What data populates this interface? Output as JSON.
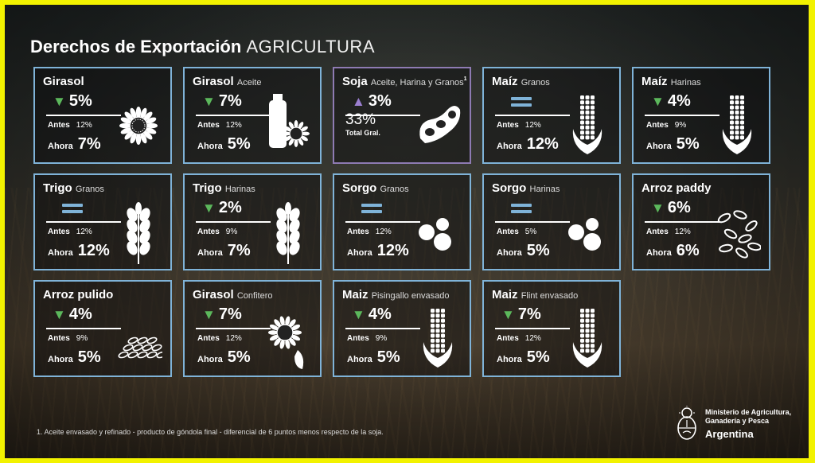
{
  "title": {
    "bold": "Derechos de Exportación",
    "light": "AGRICULTURA"
  },
  "labels": {
    "before": "Antes",
    "now": "Ahora",
    "total": "Total Gral."
  },
  "colors": {
    "card_border": "#7fb3d8",
    "soja_border": "#8e7bb3",
    "down_arrow": "#5cb85c",
    "up_arrow": "#9b7fd0",
    "frame": "#f2f200"
  },
  "cards": [
    {
      "name": "Girasol",
      "sub": "",
      "change": "5%",
      "direction": "down",
      "before": "12%",
      "now": "7%",
      "icon": "sunflower-icon"
    },
    {
      "name": "Girasol",
      "sub": "Aceite",
      "change": "7%",
      "direction": "down",
      "before": "12%",
      "now": "5%",
      "icon": "oil-bottle-sunflower-icon"
    },
    {
      "name": "Soja",
      "sub": "Aceite, Harina y Granos",
      "sup": "1",
      "change": "3%",
      "direction": "up",
      "total": "33%",
      "icon": "soybean-pod-icon"
    },
    {
      "name": "Maíz",
      "sub": "Granos",
      "change": "",
      "direction": "equal",
      "before": "12%",
      "now": "12%",
      "icon": "corn-icon"
    },
    {
      "name": "Maíz",
      "sub": "Harinas",
      "change": "4%",
      "direction": "down",
      "before": "9%",
      "now": "5%",
      "icon": "corn-icon"
    },
    {
      "name": "Trigo",
      "sub": "Granos",
      "change": "",
      "direction": "equal",
      "before": "12%",
      "now": "12%",
      "icon": "wheat-icon"
    },
    {
      "name": "Trigo",
      "sub": "Harinas",
      "change": "2%",
      "direction": "down",
      "before": "9%",
      "now": "7%",
      "icon": "wheat-icon"
    },
    {
      "name": "Sorgo",
      "sub": "Granos",
      "change": "",
      "direction": "equal",
      "before": "12%",
      "now": "12%",
      "icon": "sorghum-grains-icon"
    },
    {
      "name": "Sorgo",
      "sub": "Harinas",
      "change": "",
      "direction": "equal",
      "before": "5%",
      "now": "5%",
      "icon": "sorghum-grains-icon"
    },
    {
      "name": "Arroz paddy",
      "sub": "",
      "change": "6%",
      "direction": "down",
      "before": "12%",
      "now": "6%",
      "icon": "rice-grains-icon"
    },
    {
      "name": "Arroz pulido",
      "sub": "",
      "change": "4%",
      "direction": "down",
      "before": "9%",
      "now": "5%",
      "icon": "rice-pile-icon"
    },
    {
      "name": "Girasol",
      "sub": "Confitero",
      "change": "7%",
      "direction": "down",
      "before": "12%",
      "now": "5%",
      "icon": "sunflower-seed-icon"
    },
    {
      "name": "Maiz",
      "sub": "Pisingallo envasado",
      "change": "4%",
      "direction": "down",
      "before": "9%",
      "now": "5%",
      "icon": "corn-icon"
    },
    {
      "name": "Maiz",
      "sub": "Flint envasado",
      "change": "7%",
      "direction": "down",
      "before": "12%",
      "now": "5%",
      "icon": "corn-icon"
    }
  ],
  "footnote": "1. Aceite envasado y refinado - producto de góndola final - diferencial de 6 puntos menos respecto de la soja.",
  "ministry": {
    "line1": "Ministerio de Agricultura,",
    "line2": "Ganadería y Pesca",
    "line3": "Argentina"
  }
}
